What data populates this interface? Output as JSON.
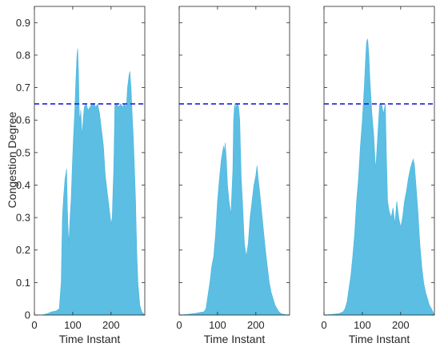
{
  "chart_data": {
    "type": "area",
    "ylabel": "Congestion Degree",
    "xlabel": "Time Instant",
    "ylim": [
      0,
      0.95
    ],
    "yticks": [
      0,
      0.1,
      0.2,
      0.3,
      0.4,
      0.5,
      0.6,
      0.7,
      0.8,
      0.9
    ],
    "xlim": [
      0,
      288
    ],
    "xticks": [
      0,
      100,
      200
    ],
    "threshold": 0.65,
    "fill_color": "#4db8e0",
    "threshold_color": "#1f1fe6",
    "panels": [
      {
        "x": [
          0,
          20,
          35,
          45,
          55,
          60,
          65,
          70,
          73,
          76,
          80,
          84,
          86,
          88,
          90,
          93,
          96,
          99,
          102,
          105,
          108,
          111,
          113,
          115,
          117,
          119,
          121,
          124,
          127,
          130,
          135,
          140,
          145,
          150,
          155,
          160,
          165,
          170,
          175,
          180,
          185,
          190,
          195,
          200,
          203,
          205,
          207,
          210,
          215,
          220,
          225,
          230,
          235,
          240,
          243,
          245,
          247,
          249,
          252,
          255,
          258,
          261,
          264,
          267,
          270,
          275,
          280,
          288
        ],
        "values": [
          0,
          0,
          0.005,
          0.01,
          0.012,
          0.015,
          0.02,
          0.1,
          0.3,
          0.36,
          0.42,
          0.45,
          0.33,
          0.26,
          0.22,
          0.3,
          0.36,
          0.46,
          0.55,
          0.62,
          0.72,
          0.8,
          0.82,
          0.75,
          0.62,
          0.6,
          0.63,
          0.55,
          0.6,
          0.64,
          0.65,
          0.63,
          0.64,
          0.65,
          0.65,
          0.64,
          0.65,
          0.62,
          0.57,
          0.52,
          0.43,
          0.38,
          0.33,
          0.28,
          0.3,
          0.38,
          0.45,
          0.65,
          0.65,
          0.64,
          0.65,
          0.64,
          0.65,
          0.64,
          0.7,
          0.72,
          0.74,
          0.75,
          0.7,
          0.62,
          0.55,
          0.45,
          0.35,
          0.2,
          0.1,
          0.03,
          0.01,
          0
        ]
      },
      {
        "x": [
          0,
          20,
          40,
          55,
          65,
          70,
          75,
          80,
          85,
          90,
          95,
          100,
          105,
          110,
          113,
          116,
          118,
          120,
          123,
          126,
          130,
          135,
          140,
          142,
          144,
          146,
          148,
          150,
          152,
          155,
          158,
          160,
          162,
          165,
          170,
          175,
          180,
          185,
          190,
          195,
          200,
          203,
          206,
          210,
          215,
          220,
          225,
          230,
          235,
          240,
          245,
          250,
          255,
          260,
          265,
          270,
          275,
          280,
          288
        ],
        "values": [
          0,
          0.002,
          0.005,
          0.008,
          0.01,
          0.02,
          0.06,
          0.1,
          0.15,
          0.18,
          0.25,
          0.35,
          0.42,
          0.48,
          0.5,
          0.52,
          0.5,
          0.53,
          0.48,
          0.4,
          0.35,
          0.31,
          0.45,
          0.6,
          0.64,
          0.65,
          0.63,
          0.65,
          0.65,
          0.64,
          0.6,
          0.5,
          0.42,
          0.35,
          0.22,
          0.18,
          0.22,
          0.3,
          0.35,
          0.4,
          0.43,
          0.46,
          0.42,
          0.38,
          0.32,
          0.26,
          0.2,
          0.15,
          0.1,
          0.07,
          0.05,
          0.03,
          0.02,
          0.01,
          0.005,
          0.003,
          0.002,
          0.001,
          0
        ]
      },
      {
        "x": [
          0,
          20,
          40,
          50,
          55,
          60,
          65,
          70,
          75,
          80,
          85,
          90,
          95,
          100,
          105,
          108,
          111,
          114,
          117,
          120,
          125,
          130,
          133,
          135,
          140,
          145,
          150,
          155,
          160,
          163,
          166,
          170,
          175,
          180,
          185,
          190,
          195,
          200,
          205,
          210,
          215,
          220,
          225,
          230,
          233,
          236,
          240,
          245,
          250,
          255,
          260,
          265,
          270,
          275,
          280,
          288
        ],
        "values": [
          0,
          0.002,
          0.005,
          0.01,
          0.02,
          0.04,
          0.08,
          0.12,
          0.18,
          0.25,
          0.35,
          0.42,
          0.52,
          0.6,
          0.7,
          0.78,
          0.84,
          0.85,
          0.8,
          0.72,
          0.62,
          0.55,
          0.48,
          0.45,
          0.55,
          0.65,
          0.65,
          0.62,
          0.65,
          0.48,
          0.35,
          0.32,
          0.3,
          0.33,
          0.28,
          0.35,
          0.3,
          0.27,
          0.3,
          0.35,
          0.38,
          0.42,
          0.45,
          0.47,
          0.48,
          0.46,
          0.4,
          0.32,
          0.22,
          0.15,
          0.1,
          0.07,
          0.05,
          0.03,
          0.02,
          0
        ]
      }
    ]
  }
}
